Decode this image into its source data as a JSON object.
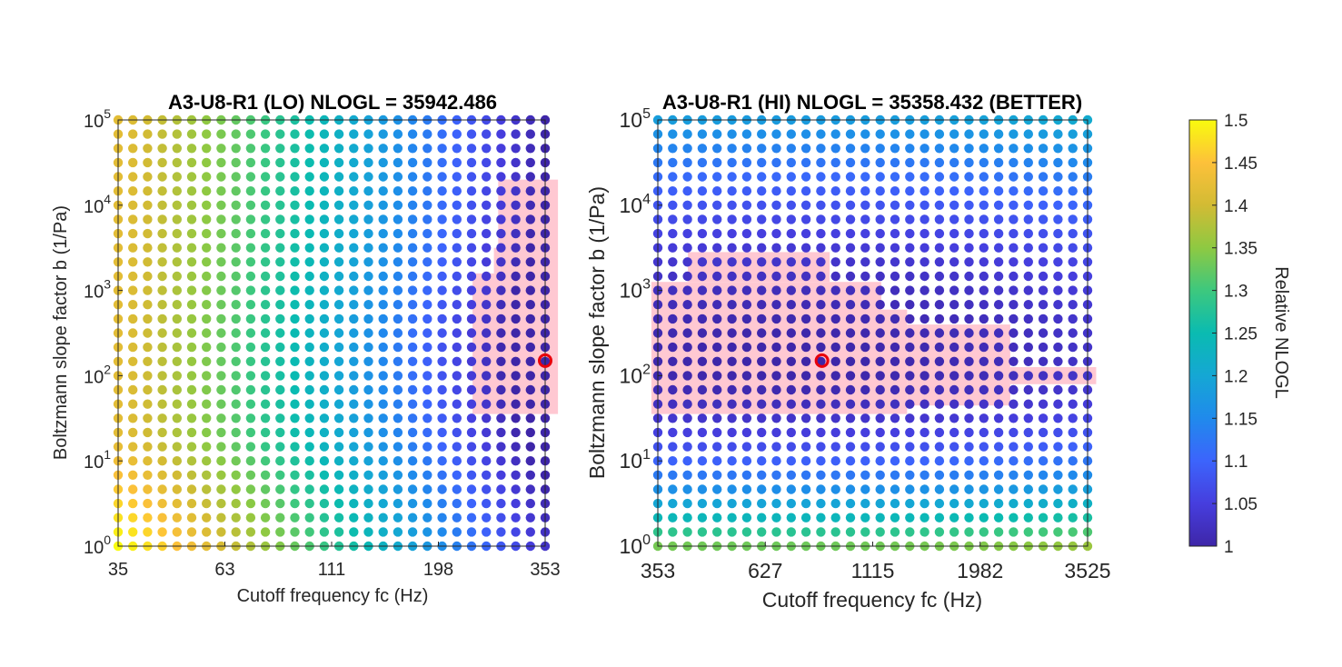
{
  "chart_data": [
    {
      "type": "scatter",
      "title": "A3-U8-R1 (LO) NLOGL = 35942.486",
      "xlabel": "Cutoff frequency fc (Hz)",
      "ylabel": "Boltzmann slope factor b (1/Pa)",
      "x_scale": "log",
      "y_scale": "log",
      "xlim": [
        35,
        353
      ],
      "ylim": [
        1,
        100000
      ],
      "x_ticks": [
        "35",
        "63",
        "111",
        "198",
        "353"
      ],
      "y_ticks": [
        "10^0",
        "10^1",
        "10^2",
        "10^3",
        "10^4",
        "10^5"
      ],
      "grid_points_x": 30,
      "grid_points_y": 31,
      "nlogl_surface": "relative NLOGL rises from ~1.0 at high fc to ~1.5 at low fc and low b",
      "best_fit": {
        "fc": 353,
        "b": 150
      },
      "confidence_region_color": "#ffc8d2"
    },
    {
      "type": "scatter",
      "title": "A3-U8-R1 (HI) NLOGL = 35358.432 (BETTER)",
      "xlabel": "Cutoff frequency fc (Hz)",
      "ylabel": "Boltzmann slope factor b (1/Pa)",
      "x_scale": "log",
      "y_scale": "log",
      "xlim": [
        353,
        3525
      ],
      "ylim": [
        1,
        100000
      ],
      "x_ticks": [
        "353",
        "627",
        "1115",
        "1982",
        "3525"
      ],
      "y_ticks": [
        "10^0",
        "10^1",
        "10^2",
        "10^3",
        "10^4",
        "10^5"
      ],
      "grid_points_x": 30,
      "grid_points_y": 31,
      "nlogl_surface": "relative NLOGL minimum ~1.0 near b=10^2, rising to ~1.35 at b=10^0",
      "best_fit": {
        "fc": 850,
        "b": 150
      },
      "confidence_region_color": "#ffc8d2"
    }
  ],
  "colorbar": {
    "label": "Relative NLOGL",
    "min": 1,
    "max": 1.5,
    "ticks": [
      "1",
      "1.05",
      "1.1",
      "1.15",
      "1.2",
      "1.25",
      "1.3",
      "1.35",
      "1.4",
      "1.45",
      "1.5"
    ]
  }
}
